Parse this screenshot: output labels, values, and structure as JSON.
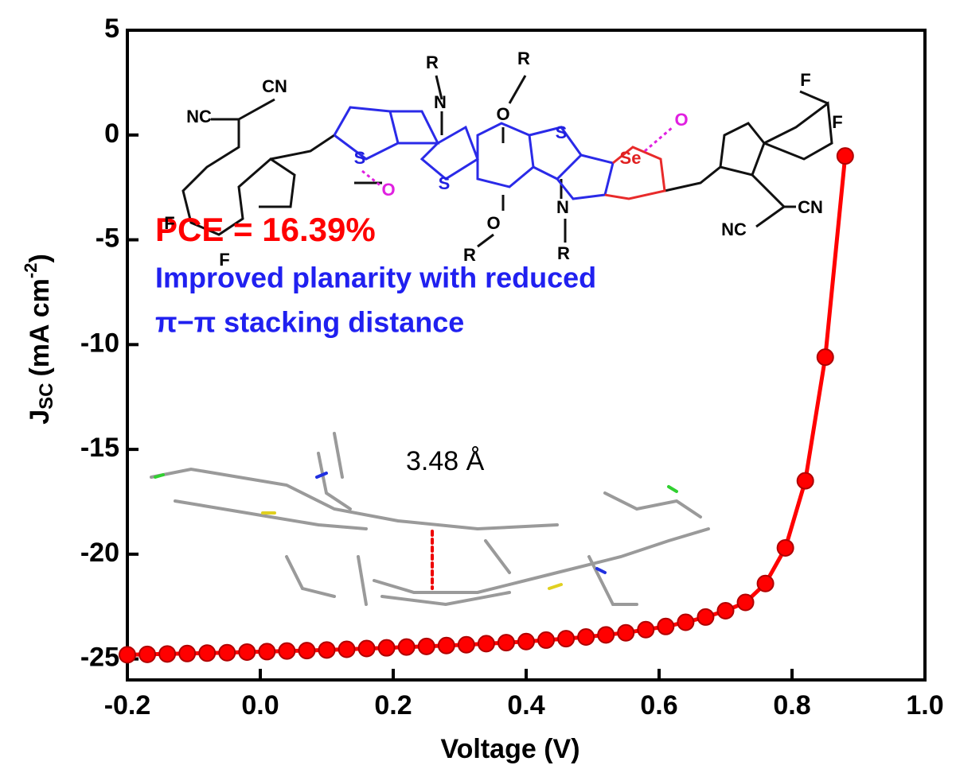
{
  "chart_data": {
    "type": "line",
    "xlabel": "Voltage (V)",
    "ylabel": {
      "main": "J",
      "sub": "SC",
      "unit": "(mA cm",
      "sup": "-2",
      "end": ")"
    },
    "xlim": [
      -0.2,
      1.0
    ],
    "ylim": [
      -26,
      5
    ],
    "xticks": [
      -0.2,
      {
        "value": 0,
        "label": "0.0"
      },
      0.2,
      0.4,
      0.6,
      0.8,
      {
        "value": 1,
        "label": "1.0"
      }
    ],
    "yticks": [
      5,
      0,
      -5,
      -10,
      -15,
      -20,
      -25
    ],
    "series": [
      {
        "name": "PCE = 16.39%",
        "color": "#ff0000",
        "x": [
          -0.2,
          -0.17,
          -0.14,
          -0.11,
          -0.08,
          -0.05,
          -0.02,
          0.01,
          0.04,
          0.07,
          0.1,
          0.13,
          0.16,
          0.19,
          0.22,
          0.25,
          0.28,
          0.31,
          0.34,
          0.37,
          0.4,
          0.43,
          0.46,
          0.49,
          0.52,
          0.55,
          0.58,
          0.61,
          0.64,
          0.67,
          0.7,
          0.73,
          0.76,
          0.79,
          0.82,
          0.85,
          0.88
        ],
        "values": [
          -24.8,
          -24.78,
          -24.76,
          -24.74,
          -24.72,
          -24.7,
          -24.67,
          -24.65,
          -24.62,
          -24.6,
          -24.57,
          -24.54,
          -24.5,
          -24.47,
          -24.43,
          -24.4,
          -24.36,
          -24.32,
          -24.27,
          -24.22,
          -24.17,
          -24.1,
          -24.03,
          -23.95,
          -23.85,
          -23.75,
          -23.6,
          -23.45,
          -23.25,
          -23.0,
          -22.7,
          -22.3,
          -21.4,
          -19.7,
          -16.5,
          -10.6,
          -1.0
        ]
      }
    ],
    "annotations": [
      "Improved planarity with reduced",
      "π−π stacking distance",
      "3.48 Å"
    ],
    "structure_labels": [
      "CN",
      "NC",
      "F",
      "F",
      "O",
      "S",
      "N",
      "R",
      "O",
      "R",
      "S",
      "S",
      "O",
      "R",
      "N",
      "R",
      "Se",
      "O",
      "F",
      "F",
      "CN",
      "NC"
    ]
  }
}
